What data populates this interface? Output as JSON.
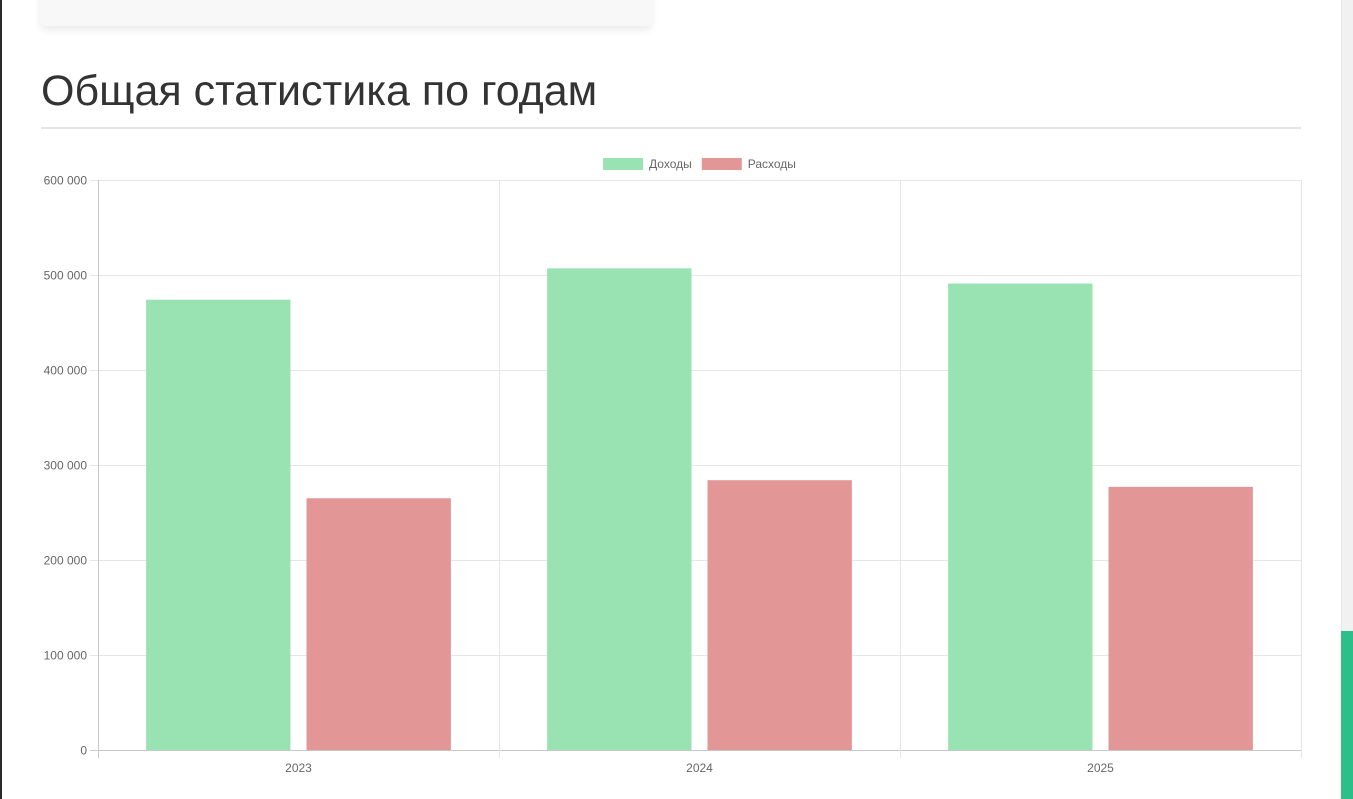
{
  "page": {
    "title": "Общая статистика по годам"
  },
  "colors": {
    "income_fill": "#99e3b2",
    "expense_fill": "#e29696",
    "grid": "#e6e6e6",
    "axis_text": "#666666",
    "scroll_thumb": "#2dbf8a"
  },
  "chart_data": {
    "type": "bar",
    "title": "",
    "xlabel": "",
    "ylabel": "",
    "categories": [
      "2023",
      "2024",
      "2025"
    ],
    "series": [
      {
        "name": "Доходы",
        "color": "#99e3b2",
        "values": [
          474000,
          507000,
          491000
        ]
      },
      {
        "name": "Расходы",
        "color": "#e29696",
        "values": [
          265000,
          284000,
          277000
        ]
      }
    ],
    "ylim": [
      0,
      600000
    ],
    "yticks": [
      0,
      100000,
      200000,
      300000,
      400000,
      500000,
      600000
    ],
    "ytick_labels": [
      "0",
      "100 000",
      "200 000",
      "300 000",
      "400 000",
      "500 000",
      "600 000"
    ],
    "grid": true,
    "legend_position": "top-center"
  }
}
